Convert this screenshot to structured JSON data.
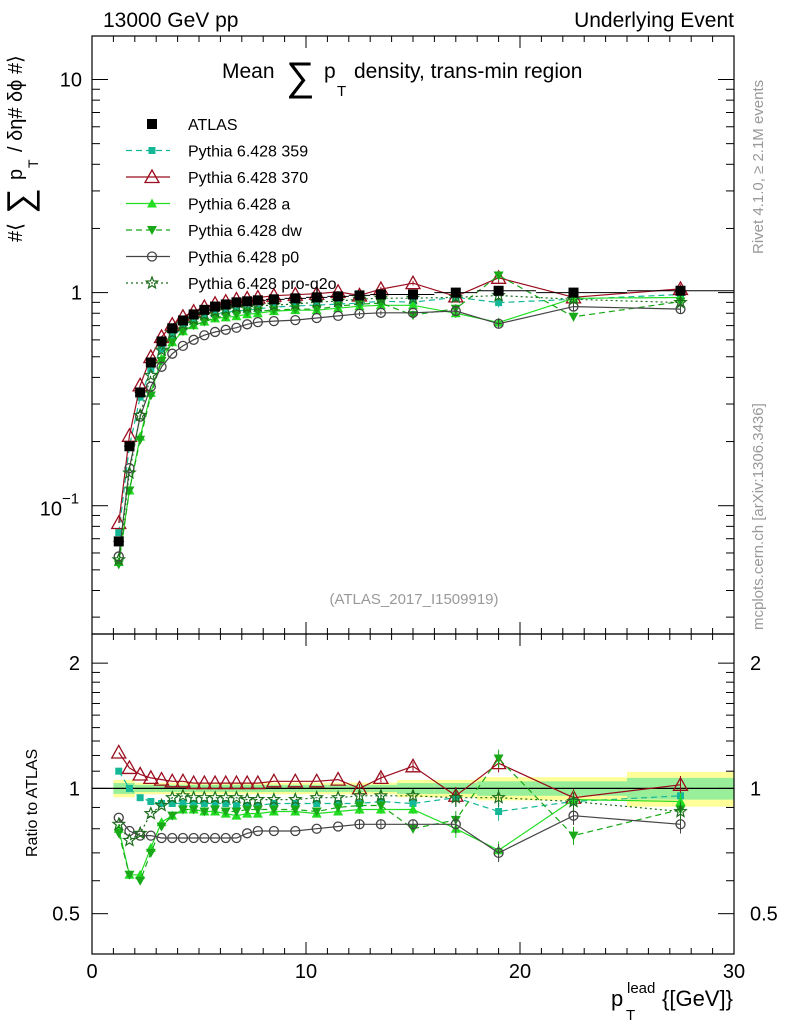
{
  "chart_data": {
    "type": "line",
    "header_left": "13000 GeV pp",
    "header_right": "Underlying Event",
    "title": "Mean ∑ pT density, trans-min region",
    "title_parts": {
      "pre": "Mean",
      "sum": "∑",
      "p": "p",
      "sub": "T",
      "post": "density, trans-min region"
    },
    "ylabel": "#⟨ ∑ pT / δη# δϕ #⟩",
    "ylabel_parts": {
      "pre": "#⟨",
      "sum": "∑",
      "p": "p",
      "sub": "T",
      "post": "/ δη# δϕ #⟩"
    },
    "ratio_ylabel": "Ratio to ATLAS",
    "xlabel": "pTlead {[GeV]}",
    "xlabel_parts": {
      "p": "p",
      "sub": "T",
      "sup": "lead",
      "post": "{[GeV]}"
    },
    "side_label_top": "Rivet 4.1.0, ≥ 2.1M events",
    "side_label_bottom": "mcplots.cern.ch [arXiv:1306.3436]",
    "analysis_id": "(ATLAS_2017_I1509919)",
    "xlim": [
      0,
      30
    ],
    "ylim": [
      0.025,
      16
    ],
    "yscale": "log",
    "ratio_ylim": [
      0.4,
      2.35
    ],
    "ratio_yscale": "log",
    "x_ticks": [
      "0",
      "10",
      "20",
      "30"
    ],
    "y_ticks": [
      {
        "value": 10,
        "label": "10"
      },
      {
        "value": 1,
        "label": "1"
      },
      {
        "value": 0.1,
        "base": "10",
        "exp": "−1"
      }
    ],
    "ratio_ticks": [
      {
        "value": 2,
        "label": "2"
      },
      {
        "value": 1,
        "label": "1"
      },
      {
        "value": 0.5,
        "label": "0.5"
      }
    ],
    "x": [
      1.25,
      1.75,
      2.25,
      2.75,
      3.25,
      3.75,
      4.25,
      4.75,
      5.25,
      5.75,
      6.25,
      6.75,
      7.25,
      7.75,
      8.5,
      9.5,
      10.5,
      11.5,
      12.5,
      13.5,
      15.0,
      17.0,
      19.0,
      22.5,
      27.5
    ],
    "data_series": {
      "name": "ATLAS",
      "values": [
        0.068,
        0.19,
        0.34,
        0.47,
        0.59,
        0.68,
        0.74,
        0.79,
        0.83,
        0.86,
        0.88,
        0.9,
        0.91,
        0.92,
        0.93,
        0.94,
        0.95,
        0.96,
        0.97,
        0.98,
        0.98,
        1.0,
        1.02,
        1.0,
        1.02
      ],
      "band_halfwidth": [
        0.03,
        0.03,
        0.02,
        0.02,
        0.02,
        0.02,
        0.02,
        0.02,
        0.02,
        0.02,
        0.02,
        0.02,
        0.02,
        0.02,
        0.02,
        0.02,
        0.02,
        0.02,
        0.02,
        0.02,
        0.03,
        0.03,
        0.04,
        0.04,
        0.06
      ]
    },
    "series": [
      {
        "name": "Pythia 6.428 359",
        "color": "#14b896",
        "dash": "6,4",
        "marker": "square",
        "ratio": [
          1.1,
          1.0,
          0.95,
          0.93,
          0.92,
          0.92,
          0.92,
          0.92,
          0.92,
          0.92,
          0.92,
          0.91,
          0.91,
          0.91,
          0.92,
          0.92,
          0.92,
          0.92,
          0.92,
          0.93,
          0.92,
          0.95,
          0.88,
          0.93,
          0.96
        ]
      },
      {
        "name": "Pythia 6.428 370",
        "color": "#9b0d1e",
        "dash": "",
        "marker": "triangle-open",
        "ratio": [
          1.22,
          1.12,
          1.08,
          1.06,
          1.05,
          1.04,
          1.04,
          1.03,
          1.03,
          1.03,
          1.03,
          1.03,
          1.03,
          1.03,
          1.04,
          1.04,
          1.04,
          1.05,
          1.0,
          1.06,
          1.13,
          0.96,
          1.15,
          0.95,
          1.02
        ]
      },
      {
        "name": "Pythia 6.428 a",
        "color": "#22dd22",
        "dash": "",
        "marker": "triangle",
        "ratio": [
          0.8,
          0.62,
          0.62,
          0.72,
          0.83,
          0.86,
          0.89,
          0.89,
          0.88,
          0.88,
          0.87,
          0.86,
          0.87,
          0.87,
          0.88,
          0.88,
          0.87,
          0.88,
          0.89,
          0.89,
          0.89,
          0.8,
          0.71,
          0.94,
          0.93
        ]
      },
      {
        "name": "Pythia 6.428 dw",
        "color": "#18a818",
        "dash": "6,4",
        "marker": "triangle-down",
        "ratio": [
          0.78,
          0.62,
          0.6,
          0.7,
          0.81,
          0.86,
          0.89,
          0.89,
          0.88,
          0.89,
          0.88,
          0.88,
          0.89,
          0.89,
          0.89,
          0.89,
          0.88,
          0.9,
          0.91,
          0.91,
          0.8,
          0.84,
          1.18,
          0.77,
          0.89
        ]
      },
      {
        "name": "Pythia 6.428 p0",
        "color": "#444444",
        "dash": "",
        "marker": "circle-open",
        "ratio": [
          0.85,
          0.79,
          0.77,
          0.77,
          0.76,
          0.76,
          0.76,
          0.76,
          0.76,
          0.76,
          0.76,
          0.76,
          0.78,
          0.79,
          0.79,
          0.79,
          0.8,
          0.81,
          0.82,
          0.82,
          0.82,
          0.82,
          0.7,
          0.86,
          0.82
        ]
      },
      {
        "name": "Pythia 6.428 pro-q2o",
        "color": "#1c6e1c",
        "dash": "2,3",
        "marker": "star",
        "ratio": [
          0.82,
          0.75,
          0.78,
          0.87,
          0.91,
          0.95,
          0.96,
          0.95,
          0.95,
          0.95,
          0.95,
          0.95,
          0.94,
          0.94,
          0.94,
          0.94,
          0.95,
          0.95,
          0.96,
          0.96,
          0.96,
          0.95,
          0.95,
          0.93,
          0.88
        ]
      }
    ]
  }
}
